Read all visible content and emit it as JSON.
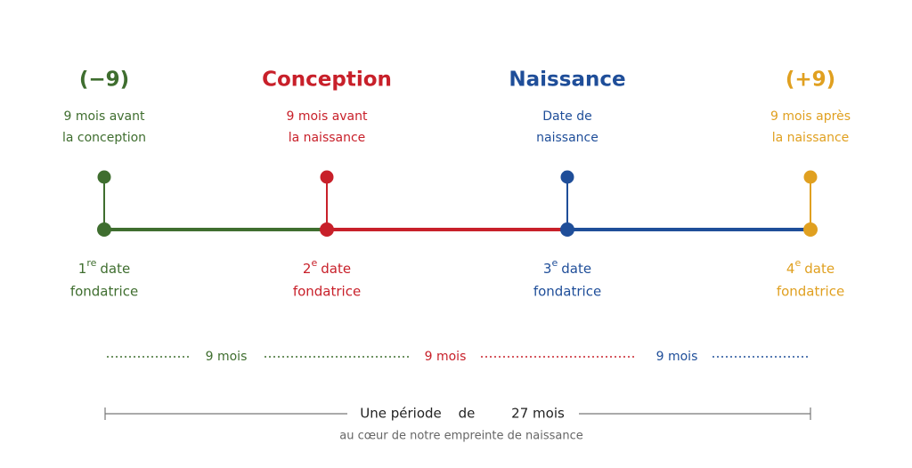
{
  "milestones": [
    {
      "title": "(−9)",
      "description": [
        "9 mois avant",
        "la conception"
      ],
      "ordinal": "1",
      "ordinal_suffix": "re",
      "date_word": "date",
      "date_line2": "fondatrice",
      "color": "#3f6e2f"
    },
    {
      "title": "Conception",
      "description": [
        "9 mois avant",
        "la naissance"
      ],
      "ordinal": "2",
      "ordinal_suffix": "e",
      "date_word": "date",
      "date_line2": "fondatrice",
      "color": "#c8202a"
    },
    {
      "title": "Naissance",
      "description": [
        "Date de",
        "naissance"
      ],
      "ordinal": "3",
      "ordinal_suffix": "e",
      "date_word": "date",
      "date_line2": "fondatrice",
      "color": "#1f4e99"
    },
    {
      "title": "(+9)",
      "description": [
        "9 mois après",
        "la naissance"
      ],
      "ordinal": "4",
      "ordinal_suffix": "e",
      "date_word": "date",
      "date_line2": "fondatrice",
      "color": "#e0a020"
    }
  ],
  "intervals": [
    "9 mois",
    "9 mois",
    "9 mois"
  ],
  "period": {
    "prefix": "Une période",
    "middle": "de",
    "value": "27 mois",
    "caption": "au cœur de notre empreinte de naissance"
  }
}
